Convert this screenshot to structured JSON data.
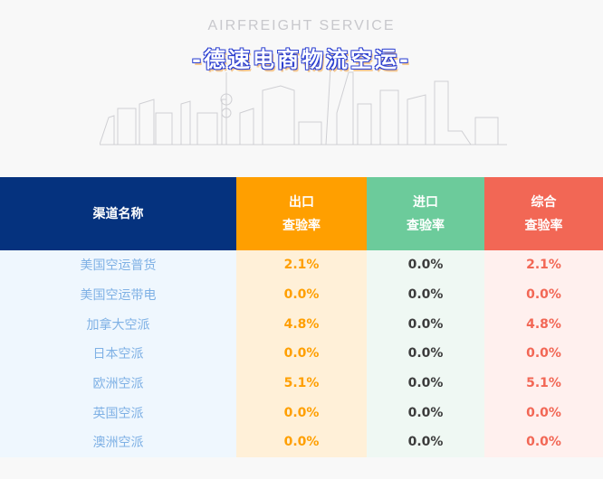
{
  "hero": {
    "subtitle": "AIRFREIGHT SERVICE",
    "title": "-德速电商物流空运-"
  },
  "table": {
    "headers": [
      {
        "line1": "渠道名称",
        "line2": ""
      },
      {
        "line1": "出口",
        "line2": "查验率"
      },
      {
        "line1": "进口",
        "line2": "查验率"
      },
      {
        "line1": "综合",
        "line2": "查验率"
      }
    ],
    "rows": [
      {
        "name": "美国空运普货",
        "export": "2.1%",
        "import": "0.0%",
        "total": "2.1%"
      },
      {
        "name": "美国空运带电",
        "export": "0.0%",
        "import": "0.0%",
        "total": "0.0%"
      },
      {
        "name": "加拿大空派",
        "export": "4.8%",
        "import": "0.0%",
        "total": "4.8%"
      },
      {
        "name": "日本空派",
        "export": "0.0%",
        "import": "0.0%",
        "total": "0.0%"
      },
      {
        "name": "欧洲空派",
        "export": "5.1%",
        "import": "0.0%",
        "total": "5.1%"
      },
      {
        "name": "英国空派",
        "export": "0.0%",
        "import": "0.0%",
        "total": "0.0%"
      },
      {
        "name": "澳洲空派",
        "export": "0.0%",
        "import": "0.0%",
        "total": "0.0%"
      }
    ]
  },
  "colors": {
    "channel": "#05327e",
    "export": "#ff9f00",
    "import": "#6ccb9b",
    "total": "#f26755"
  }
}
